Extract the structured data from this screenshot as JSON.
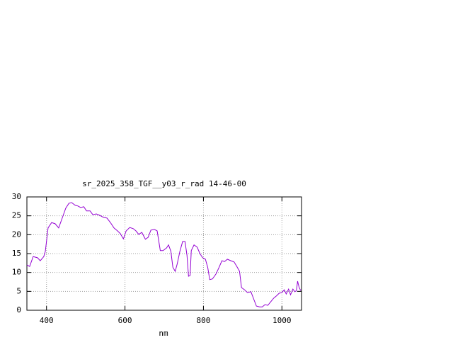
{
  "chart_data": {
    "type": "line",
    "title": "sr_2025_358_TGF__y03_r_rad 14-46-00",
    "x_label": "nm",
    "xlim": [
      350,
      1050
    ],
    "xticks": [
      400,
      600,
      800,
      1000
    ],
    "ylim": [
      0,
      30
    ],
    "yticks": [
      0,
      5,
      10,
      15,
      20,
      25,
      30
    ],
    "grid": true,
    "series": [
      {
        "color": "#9400d3",
        "x": [
          350,
          357,
          366,
          377,
          384,
          393,
          397,
          404,
          413,
          422,
          431,
          440,
          449,
          457,
          464,
          473,
          480,
          487,
          495,
          502,
          511,
          518,
          527,
          536,
          545,
          554,
          563,
          572,
          581,
          588,
          596,
          603,
          612,
          621,
          628,
          635,
          643,
          652,
          659,
          666,
          675,
          682,
          690,
          697,
          706,
          711,
          717,
          722,
          728,
          733,
          740,
          747,
          753,
          758,
          762,
          766,
          769,
          776,
          784,
          791,
          798,
          805,
          811,
          816,
          823,
          832,
          840,
          847,
          854,
          861,
          870,
          878,
          885,
          892,
          897,
          905,
          912,
          921,
          928,
          935,
          943,
          950,
          957,
          964,
          972,
          979,
          986,
          993,
          1000,
          1006,
          1011,
          1017,
          1022,
          1028,
          1033,
          1037,
          1040,
          1044,
          1048
        ],
        "values": [
          12,
          11.6,
          14.2,
          13.9,
          13.1,
          14.2,
          15.6,
          21.8,
          23.2,
          22.9,
          21.8,
          24.4,
          27,
          28.3,
          28.5,
          27.8,
          27.6,
          27.2,
          27.4,
          26.3,
          26.3,
          25.3,
          25.5,
          25.1,
          24.6,
          24.4,
          23.2,
          21.8,
          21,
          20.3,
          18.9,
          21,
          21.9,
          21.6,
          21,
          20.1,
          20.6,
          18.8,
          19.3,
          21.2,
          21.4,
          21,
          15.8,
          15.8,
          16.5,
          17.3,
          15.6,
          11.4,
          10.3,
          12.2,
          15.6,
          18.2,
          18.2,
          14.6,
          9,
          9.2,
          15.8,
          17.3,
          16.7,
          15,
          13.9,
          13.5,
          11.3,
          8.1,
          8.3,
          9.6,
          11.4,
          13.1,
          12.9,
          13.5,
          13.1,
          12.8,
          11.6,
          10.3,
          6,
          5.4,
          4.7,
          4.9,
          3,
          1.1,
          0.9,
          0.9,
          1.5,
          1.3,
          2.3,
          3.2,
          3.8,
          4.5,
          4.7,
          5.4,
          4.3,
          5.6,
          4.1,
          5.6,
          4.9,
          5.2,
          7.7,
          6,
          5.2
        ]
      }
    ]
  }
}
